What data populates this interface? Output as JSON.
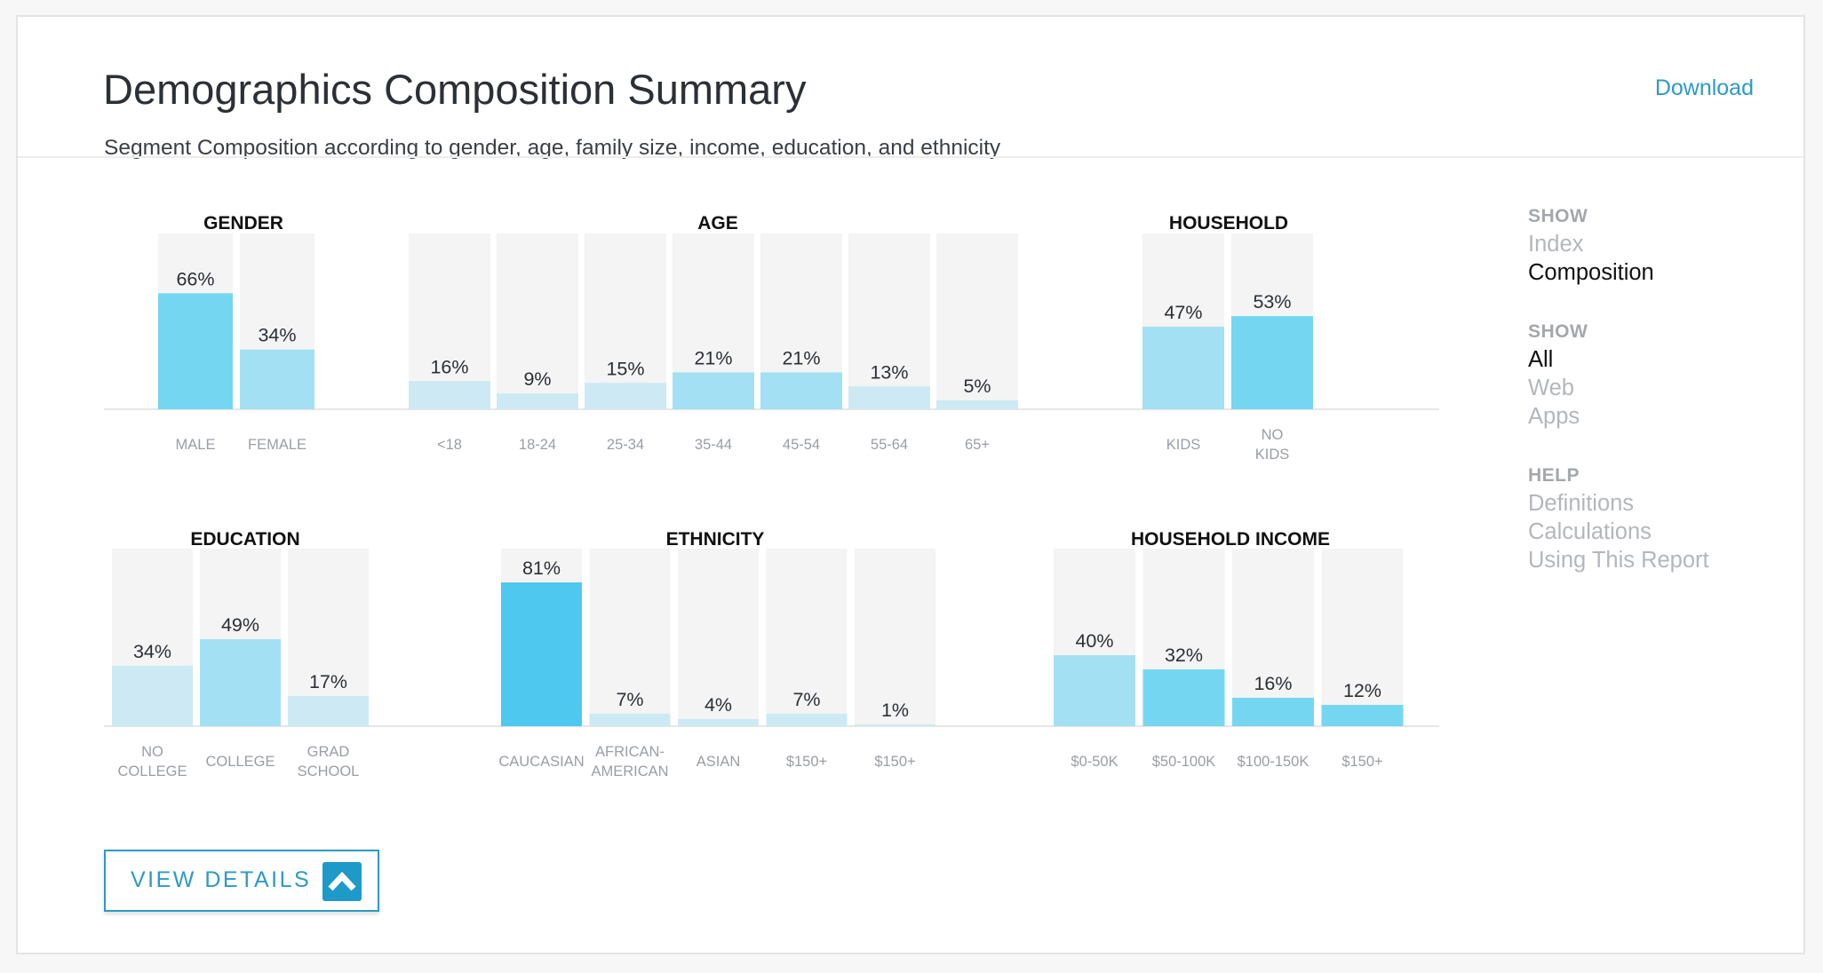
{
  "header": {
    "title": "Demographics Composition Summary",
    "subtitle": "Segment Composition according to gender, age, family size, income, education, and ethnicity",
    "download_label": "Download"
  },
  "sidebar": {
    "show_head_1": "SHOW",
    "view_options": [
      {
        "label": "Index",
        "active": false
      },
      {
        "label": "Composition",
        "active": true
      }
    ],
    "show_head_2": "SHOW",
    "platform_options": [
      {
        "label": "All",
        "active": true
      },
      {
        "label": "Web",
        "active": false
      },
      {
        "label": "Apps",
        "active": false
      }
    ],
    "help_head": "HELP",
    "help_links": [
      "Definitions",
      "Calculations",
      "Using This Report"
    ]
  },
  "view_details_label": "VIEW DETAILS",
  "colors": {
    "tint1": "#cde9f3",
    "tint2": "#a4e0f3",
    "tint3": "#75d6f2",
    "tint4": "#4ec8ef",
    "background_bar": "#f4f4f4",
    "accent": "#2d9ac6"
  },
  "chart_data": [
    {
      "type": "bar",
      "title": "GENDER",
      "categories": [
        "MALE",
        "FEMALE"
      ],
      "values": [
        66,
        34
      ],
      "value_labels": [
        "66%",
        "34%"
      ],
      "ylim": [
        0,
        100
      ],
      "shade": [
        3,
        2
      ]
    },
    {
      "type": "bar",
      "title": "AGE",
      "categories": [
        "<18",
        "18-24",
        "25-34",
        "35-44",
        "45-54",
        "55-64",
        "65+"
      ],
      "values": [
        16,
        9,
        15,
        21,
        21,
        13,
        5
      ],
      "value_labels": [
        "16%",
        "9%",
        "15%",
        "21%",
        "21%",
        "13%",
        "5%"
      ],
      "ylim": [
        0,
        100
      ],
      "shade": [
        1,
        1,
        1,
        2,
        2,
        1,
        1
      ]
    },
    {
      "type": "bar",
      "title": "HOUSEHOLD",
      "categories": [
        "KIDS",
        "NO KIDS"
      ],
      "values": [
        47,
        53
      ],
      "value_labels": [
        "47%",
        "53%"
      ],
      "ylim": [
        0,
        100
      ],
      "shade": [
        2,
        3
      ]
    },
    {
      "type": "bar",
      "title": "EDUCATION",
      "categories": [
        "NO COLLEGE",
        "COLLEGE",
        "GRAD SCHOOL"
      ],
      "values": [
        34,
        49,
        17
      ],
      "value_labels": [
        "34%",
        "49%",
        "17%"
      ],
      "ylim": [
        0,
        100
      ],
      "shade": [
        1,
        2,
        1
      ]
    },
    {
      "type": "bar",
      "title": "ETHNICITY",
      "categories": [
        "CAUCASIAN",
        "AFRICAN-AMERICAN",
        "ASIAN",
        "$150+",
        "$150+"
      ],
      "values": [
        81,
        7,
        4,
        7,
        1
      ],
      "value_labels": [
        "81%",
        "7%",
        "4%",
        "7%",
        "1%"
      ],
      "ylim": [
        0,
        100
      ],
      "shade": [
        4,
        1,
        1,
        1,
        1
      ]
    },
    {
      "type": "bar",
      "title": "HOUSEHOLD INCOME",
      "categories": [
        "$0-50K",
        "$50-100K",
        "$100-150K",
        "$150+"
      ],
      "values": [
        40,
        32,
        16,
        12
      ],
      "value_labels": [
        "40%",
        "32%",
        "16%",
        "12%"
      ],
      "ylim": [
        0,
        100
      ],
      "shade": [
        2,
        3,
        3,
        3
      ]
    }
  ]
}
